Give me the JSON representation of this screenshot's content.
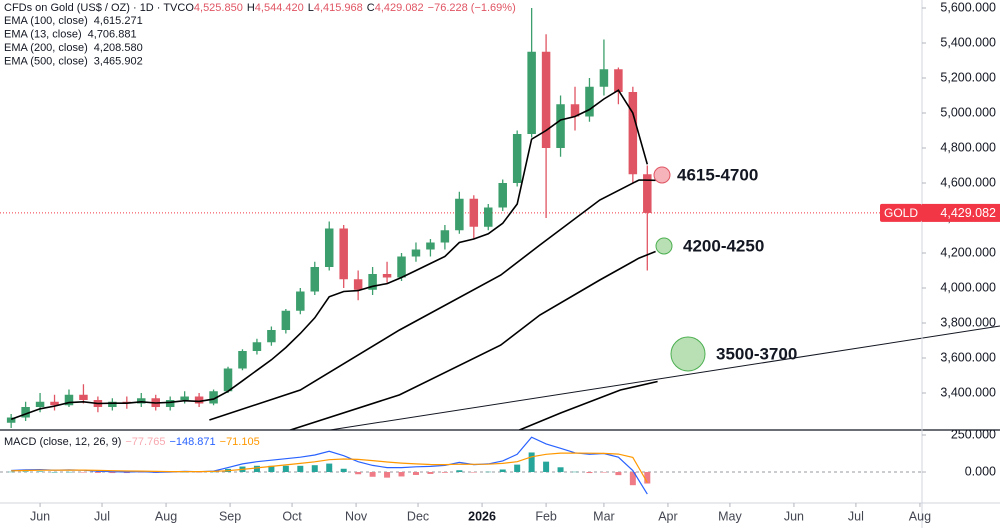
{
  "chart_data": {
    "type": "candlestick",
    "title": "CFDs on Gold (US$ / OZ) · 1D · TVC",
    "ohlc_header": [
      {
        "key": "O",
        "value": "4,525.850"
      },
      {
        "key": "H",
        "value": "4,544.420"
      },
      {
        "key": "L",
        "value": "4,415.968"
      },
      {
        "key": "C",
        "value": "4,429.082"
      }
    ],
    "change": "−76.228 (−1.69%)",
    "up_color": "#3c9e6c",
    "down_color": "#e05563",
    "x": [
      -14,
      -7,
      0,
      7,
      14,
      21,
      28,
      35,
      42,
      49,
      56,
      63,
      70,
      77,
      84,
      91,
      98,
      105,
      112,
      119,
      126,
      133,
      140,
      147,
      154,
      161,
      168,
      175,
      182,
      189,
      196,
      203,
      210,
      217,
      224,
      231,
      238,
      245,
      252,
      259,
      266,
      273,
      280,
      287,
      294
    ],
    "open": [
      3230,
      3260,
      3320,
      3350,
      3330,
      3390,
      3360,
      3320,
      3350,
      3340,
      3370,
      3320,
      3360,
      3380,
      3340,
      3410,
      3540,
      3640,
      3690,
      3760,
      3870,
      3980,
      4120,
      4340,
      4050,
      3990,
      4080,
      4060,
      4180,
      4220,
      4260,
      4330,
      4510,
      4350,
      4460,
      4600,
      4880,
      5350,
      4800,
      5050,
      4980,
      5150,
      5250,
      5120,
      4650
    ],
    "high": [
      3280,
      3350,
      3400,
      3390,
      3420,
      3450,
      3380,
      3370,
      3380,
      3400,
      3390,
      3380,
      3410,
      3400,
      3420,
      3550,
      3650,
      3710,
      3780,
      3880,
      4000,
      4150,
      4380,
      4360,
      4100,
      4120,
      4150,
      4200,
      4260,
      4280,
      4360,
      4550,
      4530,
      4480,
      4620,
      4900,
      5600,
      5450,
      5100,
      5150,
      5200,
      5420,
      5260,
      5150,
      4700
    ],
    "low": [
      3200,
      3240,
      3290,
      3300,
      3320,
      3340,
      3290,
      3300,
      3310,
      3320,
      3300,
      3300,
      3340,
      3320,
      3330,
      3400,
      3530,
      3620,
      3670,
      3740,
      3850,
      3960,
      4100,
      4000,
      3930,
      3960,
      4030,
      4040,
      4150,
      4180,
      4220,
      4310,
      4280,
      4330,
      4440,
      4580,
      4860,
      4400,
      4750,
      4900,
      4950,
      5100,
      5050,
      4600,
      4100
    ],
    "close": [
      3260,
      3320,
      3350,
      3330,
      3390,
      3360,
      3320,
      3350,
      3340,
      3370,
      3320,
      3360,
      3380,
      3340,
      3410,
      3540,
      3640,
      3690,
      3760,
      3870,
      3980,
      4120,
      4340,
      4050,
      3990,
      4080,
      4060,
      4180,
      4220,
      4260,
      4330,
      4510,
      4350,
      4460,
      4600,
      4880,
      5350,
      4800,
      5050,
      4980,
      5150,
      5250,
      5120,
      4650,
      4429.082
    ],
    "xlim": [
      -19.4,
      427
    ],
    "xticks": [
      {
        "value": 0,
        "label": "Jun"
      },
      {
        "value": 30,
        "label": "Jul"
      },
      {
        "value": 61,
        "label": "Aug"
      },
      {
        "value": 92,
        "label": "Sep"
      },
      {
        "value": 122,
        "label": "Oct"
      },
      {
        "value": 153,
        "label": "Nov"
      },
      {
        "value": 183,
        "label": "Dec"
      },
      {
        "value": 214,
        "label": "2026",
        "bold": true
      },
      {
        "value": 245,
        "label": "Feb"
      },
      {
        "value": 273,
        "label": "Mar"
      },
      {
        "value": 304,
        "label": "Apr"
      },
      {
        "value": 334,
        "label": "May"
      },
      {
        "value": 365,
        "label": "Jun"
      },
      {
        "value": 395,
        "label": "Jul"
      },
      {
        "value": 426,
        "label": "Aug"
      }
    ],
    "ylim": [
      3188.6,
      5645.7
    ],
    "yticks": [
      {
        "value": 3400,
        "label": "3,400.000"
      },
      {
        "value": 3600,
        "label": "3,600.000"
      },
      {
        "value": 3800,
        "label": "3,800.000"
      },
      {
        "value": 4000,
        "label": "4,000.000"
      },
      {
        "value": 4200,
        "label": "4,200.000"
      },
      {
        "value": 4400,
        "label": "4,400.000"
      },
      {
        "value": 4600,
        "label": "4,600.000"
      },
      {
        "value": 4800,
        "label": "4,800.000"
      },
      {
        "value": 5000,
        "label": "5,000.000"
      },
      {
        "value": 5200,
        "label": "5,200.000"
      },
      {
        "value": 5400,
        "label": "5,400.000"
      },
      {
        "value": 5600,
        "label": "5,600.000"
      }
    ],
    "indicators": [
      {
        "name": "EMA (100, close)",
        "value_label": "4,615.271",
        "color": "#000000",
        "x": [
          82,
          126,
          174,
          223,
          242,
          271,
          290,
          298
        ],
        "values": [
          3246,
          3417,
          3760,
          4074,
          4246,
          4503,
          4617,
          4615.271
        ]
      },
      {
        "name": "EMA (13, close)",
        "value_label": "4,706.881",
        "color": "#000000",
        "x": [
          -14,
          -7,
          0,
          7,
          14,
          21,
          28,
          35,
          42,
          49,
          56,
          63,
          70,
          77,
          84,
          91,
          98,
          105,
          112,
          119,
          126,
          133,
          140,
          147,
          154,
          161,
          168,
          175,
          182,
          189,
          196,
          203,
          210,
          217,
          224,
          231,
          238,
          245,
          252,
          259,
          266,
          273,
          280,
          287,
          294
        ],
        "values": [
          3250,
          3280,
          3310,
          3325,
          3345,
          3350,
          3340,
          3342,
          3342,
          3350,
          3343,
          3347,
          3356,
          3352,
          3365,
          3410,
          3470,
          3530,
          3590,
          3660,
          3740,
          3830,
          3950,
          3980,
          3985,
          4010,
          4025,
          4060,
          4100,
          4140,
          4180,
          4260,
          4280,
          4310,
          4370,
          4480,
          4850,
          4900,
          4960,
          4980,
          5020,
          5080,
          5130,
          5000,
          4706.881
        ]
      },
      {
        "name": "EMA (200, close)",
        "value_label": "4,208.580",
        "color": "#000000",
        "x": [
          121,
          174,
          223,
          242,
          271,
          290,
          298
        ],
        "values": [
          3188,
          3389,
          3674,
          3846,
          4046,
          4171,
          4208.58
        ]
      },
      {
        "name": "EMA (500, close)",
        "value_label": "3,465.902",
        "color": "#000000",
        "x": [
          232,
          252,
          281,
          299
        ],
        "values": [
          3188,
          3286,
          3417,
          3465.902
        ]
      }
    ],
    "last_price": {
      "name": "GOLD",
      "value": 4429.082,
      "label": "4,429.082",
      "color": "#f23645"
    },
    "annotations": [
      {
        "text": "4615-4700"
      },
      {
        "text": "4200-4250"
      },
      {
        "text": "3500-3700"
      }
    ],
    "macd": {
      "title": "MACD (close, 12, 26, 9)",
      "value_labels": [
        "−77.765",
        "−148.871",
        "−71.105"
      ],
      "label_colors": [
        "#f7a8b0",
        "#2962ff",
        "#ff9800"
      ],
      "histogram": [
        2,
        4,
        4,
        0,
        1,
        -1,
        -6,
        -7,
        -7,
        -3,
        -6,
        -3,
        1,
        -1,
        2,
        21,
        37,
        42,
        42,
        42,
        42,
        46,
        57,
        22,
        -15,
        -32,
        -38,
        -30,
        -20,
        -13,
        -5,
        12,
        -2,
        2,
        17,
        50,
        132,
        70,
        32,
        2,
        -7,
        -1,
        -21,
        -89,
        -77.765
      ],
      "macd": [
        10,
        14,
        16,
        12,
        14,
        12,
        5,
        2,
        0,
        3,
        -2,
        0,
        4,
        2,
        6,
        30,
        55,
        70,
        80,
        90,
        100,
        115,
        140,
        110,
        70,
        45,
        30,
        30,
        35,
        38,
        45,
        65,
        50,
        55,
        75,
        120,
        235,
        190,
        160,
        130,
        120,
        125,
        100,
        10,
        -148.871
      ],
      "signal": [
        8,
        10,
        12,
        12,
        13,
        13,
        11,
        9,
        7,
        6,
        4,
        3,
        3,
        3,
        4,
        9,
        18,
        28,
        38,
        48,
        58,
        69,
        83,
        88,
        85,
        77,
        68,
        60,
        55,
        51,
        50,
        53,
        52,
        53,
        58,
        70,
        103,
        120,
        128,
        128,
        127,
        126,
        121,
        99,
        -71.105
      ],
      "pos_color": "#26a69a",
      "neg_color": "#ef7b86",
      "macd_color": "#2962ff",
      "signal_color": "#ff9800",
      "ylim": [
        -189,
        283.8
      ],
      "yticks": [
        {
          "value": 250,
          "label": "250.000"
        },
        {
          "value": 0,
          "label": "0.000"
        }
      ]
    }
  }
}
